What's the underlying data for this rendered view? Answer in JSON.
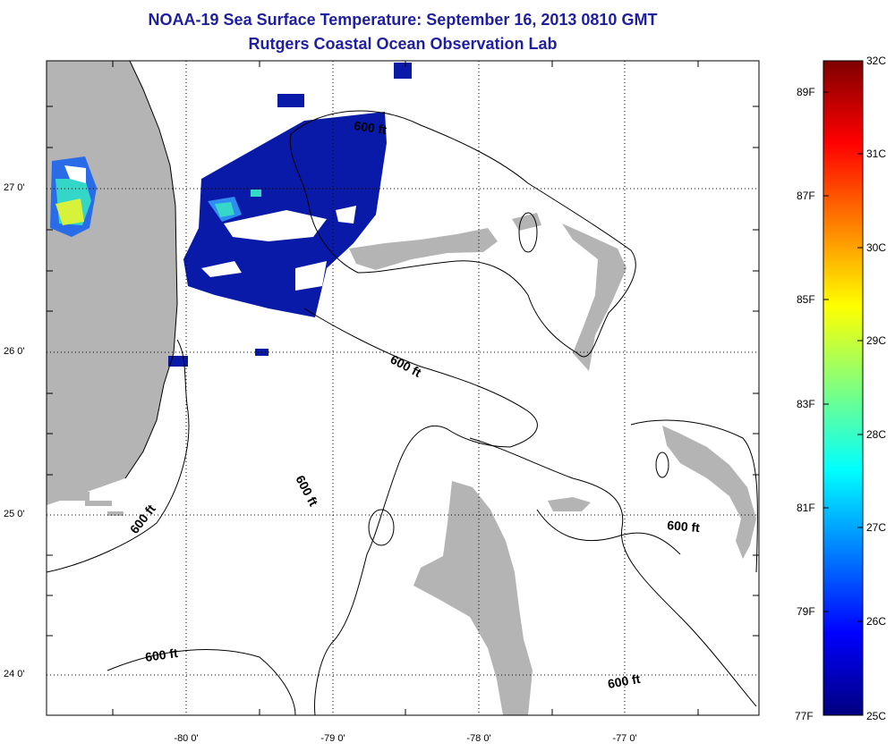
{
  "header": {
    "title": "NOAA-19 Sea Surface Temperature:  September 16, 2013 0810 GMT",
    "subtitle": "Rutgers Coastal Ocean Observation Lab"
  },
  "axes": {
    "lat_labels": [
      "27 0'",
      "26 0'",
      "25 0'",
      "24 0'"
    ],
    "lon_labels": [
      "-80 0'",
      "-79 0'",
      "-78 0'",
      "-77 0'"
    ]
  },
  "contours": {
    "label": "600 ft",
    "count": 7
  },
  "colorbar": {
    "min_c": 25,
    "max_c": 32,
    "celsius_labels": [
      "32C",
      "31C",
      "30C",
      "29C",
      "28C",
      "27C",
      "26C",
      "25C"
    ],
    "fahrenheit_labels": [
      "89F",
      "87F",
      "85F",
      "83F",
      "81F",
      "79F",
      "77F"
    ]
  },
  "colors": {
    "land": "#b4b4b4",
    "cold_water": "#0a1aa8",
    "title": "#1f1f9f"
  }
}
